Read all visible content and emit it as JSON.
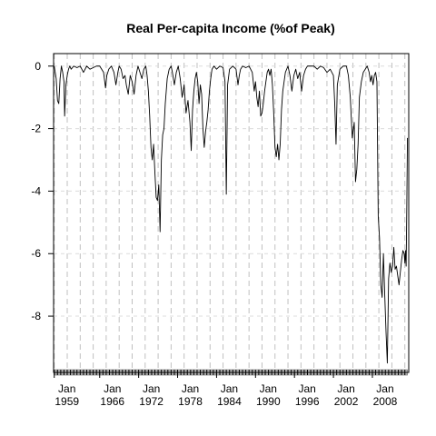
{
  "chart_data": {
    "type": "line",
    "title": "Real Per-capita Income (%of Peak)",
    "xlabel": "",
    "ylabel": "",
    "xlim": [
      1958.9,
      2013.6
    ],
    "ylim": [
      -9.8,
      0.4
    ],
    "grid": "on",
    "y_ticks": [
      0,
      -2,
      -4,
      -6,
      -8
    ],
    "y_tick_labels": [
      "0",
      "-2",
      "-4",
      "-6",
      "-8"
    ],
    "x_ticks": [
      1959,
      1966,
      1972,
      1978,
      1984,
      1990,
      1996,
      2002,
      2008
    ],
    "x_tick_labels": [
      {
        "month": "Jan",
        "year": "1959"
      },
      {
        "month": "Jan",
        "year": "1966"
      },
      {
        "month": "Jan",
        "year": "1972"
      },
      {
        "month": "Jan",
        "year": "1978"
      },
      {
        "month": "Jan",
        "year": "1984"
      },
      {
        "month": "Jan",
        "year": "1990"
      },
      {
        "month": "Jan",
        "year": "1996"
      },
      {
        "month": "Jan",
        "year": "2002"
      },
      {
        "month": "Jan",
        "year": "2008"
      }
    ],
    "series": [
      {
        "x": [
          1959.0,
          1959.3,
          1959.5,
          1959.7,
          1959.9,
          1960.1,
          1960.3,
          1960.5,
          1960.6,
          1960.8,
          1961.0,
          1961.2,
          1961.4,
          1961.6,
          1962.0,
          1962.5,
          1963.0,
          1963.5,
          1964.0,
          1964.5,
          1965.0,
          1965.5,
          1966.0,
          1966.6,
          1966.9,
          1967.1,
          1967.4,
          1967.8,
          1968.2,
          1968.5,
          1968.8,
          1969.0,
          1969.3,
          1969.6,
          1969.9,
          1970.1,
          1970.4,
          1970.7,
          1971.0,
          1971.3,
          1971.6,
          1971.9,
          1972.2,
          1972.5,
          1972.8,
          1973.1,
          1973.3,
          1973.5,
          1973.7,
          1973.9,
          1974.1,
          1974.3,
          1974.5,
          1974.7,
          1974.9,
          1975.1,
          1975.3,
          1975.5,
          1975.7,
          1975.9,
          1976.1,
          1976.4,
          1976.7,
          1977.0,
          1977.2,
          1977.5,
          1977.8,
          1978.1,
          1978.4,
          1978.7,
          1979.0,
          1979.3,
          1979.6,
          1979.9,
          1980.1,
          1980.3,
          1980.5,
          1980.7,
          1980.9,
          1981.1,
          1981.3,
          1981.5,
          1981.7,
          1981.9,
          1982.1,
          1982.3,
          1982.5,
          1982.7,
          1982.9,
          1983.1,
          1983.3,
          1983.6,
          1984.0,
          1984.5,
          1985.0,
          1985.3,
          1985.5,
          1985.7,
          1986.0,
          1986.5,
          1987.0,
          1987.3,
          1987.5,
          1987.7,
          1988.0,
          1988.5,
          1989.0,
          1989.5,
          1989.8,
          1990.0,
          1990.2,
          1990.4,
          1990.6,
          1990.8,
          1991.0,
          1991.2,
          1991.4,
          1991.6,
          1991.8,
          1992.0,
          1992.2,
          1992.4,
          1992.6,
          1992.8,
          1993.0,
          1993.2,
          1993.4,
          1993.6,
          1993.8,
          1994.0,
          1994.2,
          1994.4,
          1994.6,
          1994.8,
          1995.0,
          1995.3,
          1995.6,
          1995.9,
          1996.2,
          1996.5,
          1996.8,
          1997.1,
          1997.4,
          1997.7,
          1998.0,
          1998.5,
          1999.0,
          1999.5,
          2000.0,
          2000.5,
          2001.0,
          2001.5,
          2002.0,
          2002.2,
          2002.4,
          2002.6,
          2003.0,
          2003.5,
          2004.0,
          2004.3,
          2004.6,
          2004.9,
          2005.2,
          2005.4,
          2005.6,
          2005.8,
          2006.0,
          2006.3,
          2006.6,
          2006.9,
          2007.2,
          2007.5,
          2007.7,
          2007.9,
          2008.1,
          2008.3,
          2008.5,
          2008.7,
          2008.9,
          2009.1,
          2009.3,
          2009.5,
          2009.7,
          2009.9,
          2010.1,
          2010.3,
          2010.5,
          2010.7,
          2010.9,
          2011.1,
          2011.3,
          2011.5,
          2011.7,
          2011.9,
          2012.1,
          2012.3,
          2012.5,
          2012.7,
          2012.9,
          2013.0,
          2013.1,
          2013.2,
          2013.3,
          2013.4
        ],
        "y": [
          0,
          -0.4,
          -1.1,
          -1.2,
          -0.4,
          0,
          -0.2,
          -0.5,
          -1.6,
          -0.6,
          -0.3,
          -0.1,
          0,
          -0.1,
          0,
          -0.05,
          0,
          -0.2,
          0,
          -0.1,
          -0.05,
          0,
          0,
          -0.2,
          -0.7,
          -0.3,
          -0.1,
          0,
          -0.2,
          -0.6,
          -0.2,
          0,
          -0.1,
          -0.4,
          -0.3,
          -0.6,
          -0.9,
          -0.3,
          -0.5,
          -0.9,
          -0.3,
          0,
          -0.2,
          -0.4,
          -0.1,
          0,
          -0.3,
          -0.8,
          -1.6,
          -2.6,
          -3.0,
          -2.5,
          -3.4,
          -4.2,
          -4.3,
          -3.8,
          -5.3,
          -3.0,
          -2.2,
          -2.0,
          -1.2,
          -0.4,
          -0.1,
          0,
          -0.2,
          -0.6,
          -0.2,
          0,
          -0.4,
          -1.0,
          -0.6,
          -1.5,
          -1.1,
          -1.8,
          -2.7,
          -1.4,
          -0.8,
          -0.4,
          -0.2,
          -0.5,
          -1.2,
          -0.6,
          -0.9,
          -2.0,
          -2.6,
          -2.1,
          -1.8,
          -1.4,
          -0.8,
          -0.4,
          -0.1,
          0,
          -0.1,
          0,
          -0.05,
          -0.5,
          -4.1,
          -0.6,
          -0.1,
          0,
          -0.1,
          -0.6,
          -0.3,
          -0.1,
          0,
          -0.05,
          0,
          -0.2,
          -0.8,
          -0.5,
          -1.0,
          -1.3,
          -0.8,
          -1.6,
          -1.5,
          -1.2,
          -0.8,
          -0.5,
          -0.2,
          -0.1,
          -0.3,
          -0.1,
          -0.6,
          -1.5,
          -2.6,
          -2.9,
          -2.5,
          -3.0,
          -2.5,
          -1.4,
          -0.8,
          -0.5,
          -0.2,
          -0.1,
          0,
          -0.3,
          -0.8,
          -0.3,
          -0.1,
          -0.4,
          -0.2,
          -0.8,
          -0.3,
          -0.1,
          0,
          0,
          0,
          -0.1,
          0,
          -0.05,
          -0.2,
          -0.1,
          -0.3,
          -1.2,
          -2.5,
          -0.6,
          -0.1,
          0,
          0,
          -0.3,
          -1.0,
          -2.3,
          -1.8,
          -3.7,
          -3.3,
          -2.5,
          -1.0,
          -0.5,
          -0.2,
          -0.1,
          0,
          -0.2,
          -0.5,
          -0.3,
          -0.6,
          -0.3,
          -0.2,
          -0.5,
          -4.8,
          -5.5,
          -7.0,
          -7.4,
          -6.0,
          -7.3,
          -8.5,
          -9.5,
          -6.8,
          -6.3,
          -6.6,
          -6.4,
          -5.8,
          -6.5,
          -6.4,
          -6.7,
          -7.0,
          -6.6,
          -6.2,
          -5.9,
          -6.0,
          -6.3,
          -5.9,
          -6.4,
          -4.5,
          -2.3
        ]
      }
    ]
  }
}
